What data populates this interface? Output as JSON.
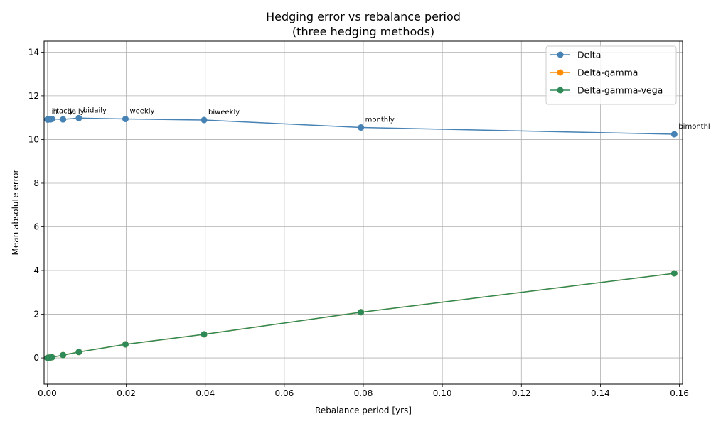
{
  "chart_data": {
    "type": "line",
    "title": "Hedging error vs rebalance period",
    "subtitle": "(three hedging methods)",
    "xlabel": "Rebalance period [yrs]",
    "ylabel": "Mean absolute error",
    "xlim": [
      -0.0008,
      0.1608
    ],
    "ylim": [
      -1.2,
      14.5
    ],
    "x_ticks": [
      0.0,
      0.02,
      0.04,
      0.06,
      0.08,
      0.1,
      0.12,
      0.14,
      0.16
    ],
    "x_tick_labels": [
      "0.00",
      "0.02",
      "0.04",
      "0.06",
      "0.08",
      "0.10",
      "0.12",
      "0.14",
      "0.16"
    ],
    "y_ticks": [
      0,
      2,
      4,
      6,
      8,
      10,
      12,
      14
    ],
    "y_tick_labels": [
      "0",
      "2",
      "4",
      "6",
      "8",
      "10",
      "12",
      "14"
    ],
    "grid": true,
    "legend_position": "top-right",
    "x": [
      3e-05,
      0.00016,
      0.0004,
      0.0008,
      0.0012,
      0.004,
      0.008,
      0.0198,
      0.0397,
      0.0794,
      0.1587
    ],
    "point_labels": [
      "intraday",
      "hourly",
      "4-hourly",
      "8-hourly",
      "thrice daily",
      "daily",
      "bidaily",
      "weekly",
      "biweekly",
      "monthly",
      "bimonthly"
    ],
    "point_label_text": [
      "i",
      "",
      "h",
      "",
      "tacly",
      "daily",
      "bidaily",
      "weekly",
      "biweekly",
      "monthly",
      "bimonthl"
    ],
    "series": [
      {
        "name": "Delta",
        "color": "#4682b4",
        "values": [
          10.92,
          10.91,
          10.93,
          10.92,
          10.94,
          10.92,
          10.98,
          10.94,
          10.89,
          10.55,
          10.24
        ]
      },
      {
        "name": "Delta-gamma",
        "color": "#ff8c00",
        "values": [
          0.0,
          0.0,
          0.01,
          0.02,
          0.03,
          0.13,
          0.27,
          0.62,
          1.08,
          2.09,
          3.87
        ]
      },
      {
        "name": "Delta-gamma-vega",
        "color": "#2e8b57",
        "values": [
          0.0,
          0.0,
          0.01,
          0.02,
          0.03,
          0.13,
          0.27,
          0.62,
          1.08,
          2.09,
          3.87
        ]
      }
    ]
  }
}
